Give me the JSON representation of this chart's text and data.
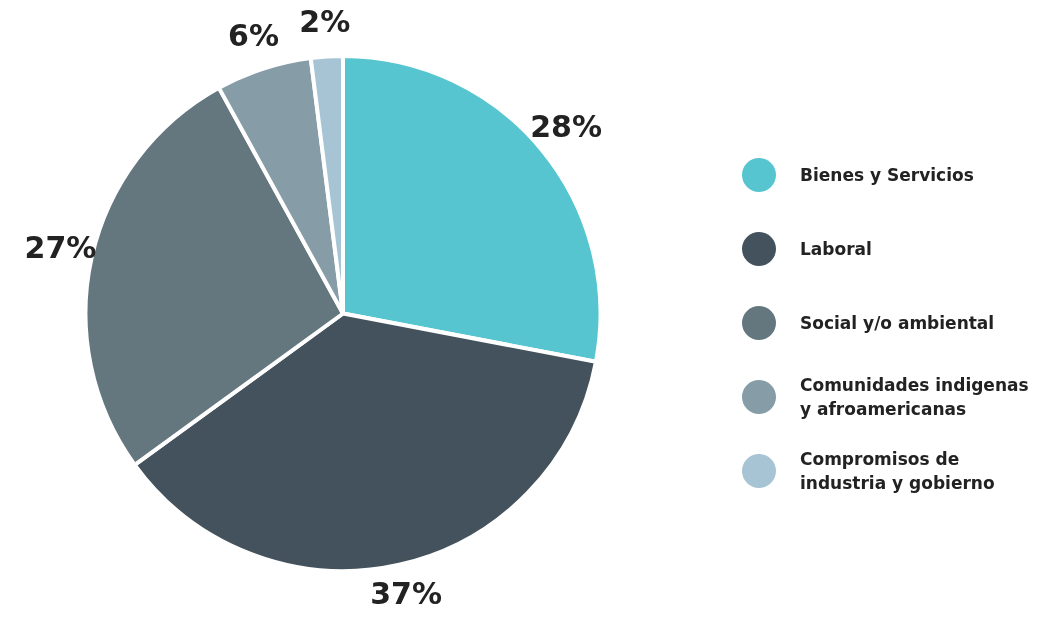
{
  "chart_data": {
    "type": "pie",
    "categories": [
      "Bienes y Servicios",
      "Laboral",
      "Social y/o ambiental",
      "Comunidades indigenas y afroamericanas",
      "Compromisos de industria y gobierno"
    ],
    "values": [
      28,
      37,
      27,
      6,
      2
    ],
    "value_labels": [
      "28%",
      "37%",
      "27%",
      "6%",
      "2%"
    ],
    "colors": [
      "#56c5d0",
      "#43525c",
      "#64777f",
      "#869ca7",
      "#a7c4d4"
    ],
    "legend": "right"
  }
}
